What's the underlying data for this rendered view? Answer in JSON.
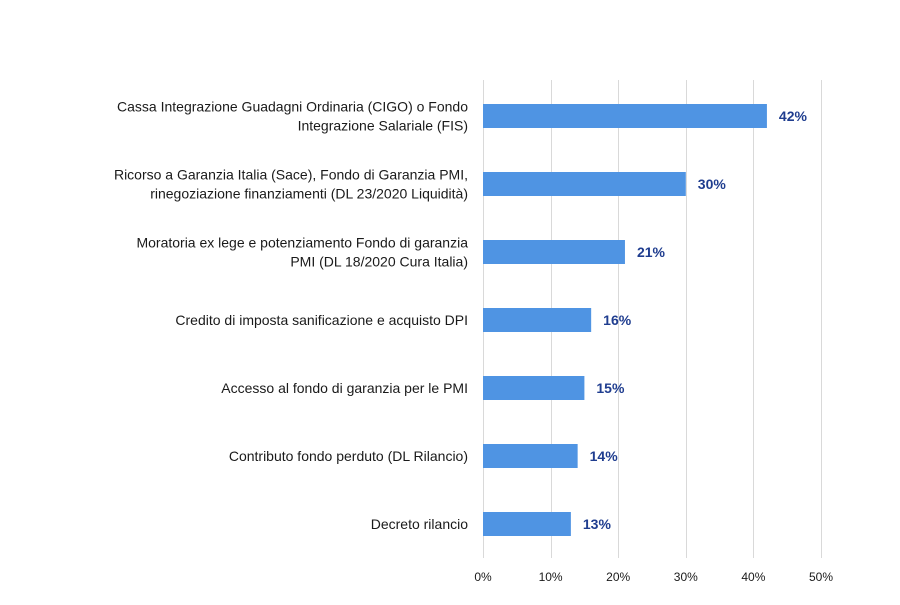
{
  "chart_data": {
    "type": "bar",
    "orientation": "horizontal",
    "categories": [
      "Cassa Integrazione Guadagni Ordinaria (CIGO) o Fondo\nIntegrazione Salariale (FIS)",
      "Ricorso a Garanzia Italia (Sace), Fondo di Garanzia PMI,\nrinegoziazione finanziamenti (DL 23/2020 Liquidità)",
      "Moratoria ex lege e potenziamento Fondo di garanzia\nPMI (DL 18/2020 Cura Italia)",
      "Credito di imposta sanificazione e acquisto DPI",
      "Accesso al fondo di garanzia per le PMI",
      "Contributo fondo perduto (DL Rilancio)",
      "Decreto rilancio"
    ],
    "values": [
      42,
      30,
      21,
      16,
      15,
      14,
      13
    ],
    "data_labels": [
      "42%",
      "30%",
      "21%",
      "16%",
      "15%",
      "14%",
      "13%"
    ],
    "xlim": [
      0,
      50
    ],
    "x_ticks": [
      0,
      10,
      20,
      30,
      40,
      50
    ],
    "x_tick_labels": [
      "0%",
      "10%",
      "20%",
      "30%",
      "40%",
      "50%"
    ],
    "title": "",
    "xlabel": "",
    "ylabel": "",
    "grid": "vertical",
    "legend": "none",
    "colors": {
      "bar": "#4f94e3",
      "data_label": "#1f3d8f",
      "grid": "#d9d9d9"
    }
  }
}
